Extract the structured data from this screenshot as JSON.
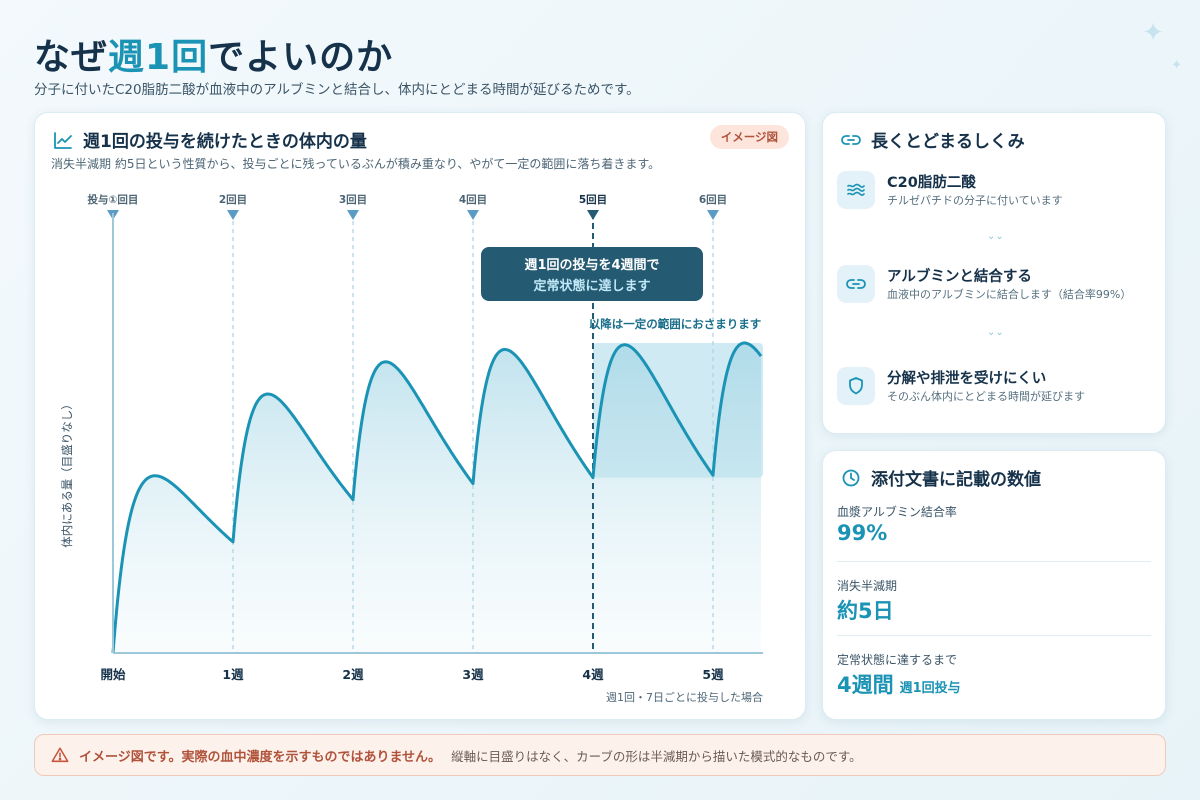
{
  "header": {
    "title_pre": "なぜ",
    "title_accent": "週1回",
    "title_post": "でよいのか",
    "subtitle": "分子に付いたC20脂肪二酸が血液中のアルブミンと結合し、体内にとどまる時間が延びるためです。"
  },
  "chart_card": {
    "title": "週1回の投与を続けたときの体内の量",
    "badge": "イメージ図",
    "description": "消失半減期 約5日という性質から、投与ごとに残っているぶんが積み重なり、やがて一定の範囲に落ち着きます。",
    "icon": "line-chart-icon"
  },
  "chart_data": {
    "type": "line",
    "title": "週1回の投与を続けたときの体内の量",
    "xlabel": "",
    "ylabel": "体内にある量（目盛りなし）",
    "xlim": [
      0,
      5.4
    ],
    "x_ticks": [
      {
        "week": 0,
        "label": "開始"
      },
      {
        "week": 1,
        "label": "1週"
      },
      {
        "week": 2,
        "label": "2週"
      },
      {
        "week": 3,
        "label": "3週"
      },
      {
        "week": 4,
        "label": "4週"
      },
      {
        "week": 5,
        "label": "5週"
      }
    ],
    "doses": [
      {
        "week": 0,
        "label": "投与①回目"
      },
      {
        "week": 1,
        "label": "2回目"
      },
      {
        "week": 2,
        "label": "3回目"
      },
      {
        "week": 3,
        "label": "4回目"
      },
      {
        "week": 4,
        "label": "5回目",
        "highlight": true
      },
      {
        "week": 5,
        "label": "6回目"
      }
    ],
    "model": {
      "half_life_days": 5,
      "dosing_interval_days": 7,
      "rise_fraction": 0.2
    },
    "steady_state_week": 4,
    "callout": [
      "週1回の投与を4週間で",
      "定常状態に達します"
    ],
    "band_label": "以降は一定の範囲におさまります",
    "footnote": "週1回・7日ごとに投与した場合",
    "grid": false,
    "legend": "none",
    "colors": {
      "line": "#1a93b5",
      "band": "#a8d8e8",
      "callout": "#245a72",
      "dose_marker": "#5b9cc4"
    }
  },
  "mechanism": {
    "title": "長くとどまるしくみ",
    "icon": "link-icon",
    "items": [
      {
        "title": "C20脂肪二酸",
        "desc": "チルゼパチドの分子に付いています",
        "icon": "waves-icon"
      },
      {
        "title": "アルブミンと結合する",
        "desc": "血液中のアルブミンに結合します（結合率99%）",
        "icon": "link-icon"
      },
      {
        "title": "分解や排泄を受けにくい",
        "desc": "そのぶん体内にとどまる時間が延びます",
        "icon": "shield-icon"
      }
    ]
  },
  "values": {
    "title": "添付文書に記載の数値",
    "icon": "clock-icon",
    "items": [
      {
        "label": "血漿アルブミン結合率",
        "value": "99%",
        "sub": ""
      },
      {
        "label": "消失半減期",
        "value": "約5日",
        "sub": ""
      },
      {
        "label": "定常状態に達するまで",
        "value": "4週間",
        "sub": "週1回投与"
      }
    ]
  },
  "notice": {
    "bold": "イメージ図です。実際の血中濃度を示すものではありません。",
    "rest": "縦軸に目盛りはなく、カーブの形は半減期から描いた模式的なものです。",
    "icon": "warning-icon"
  }
}
